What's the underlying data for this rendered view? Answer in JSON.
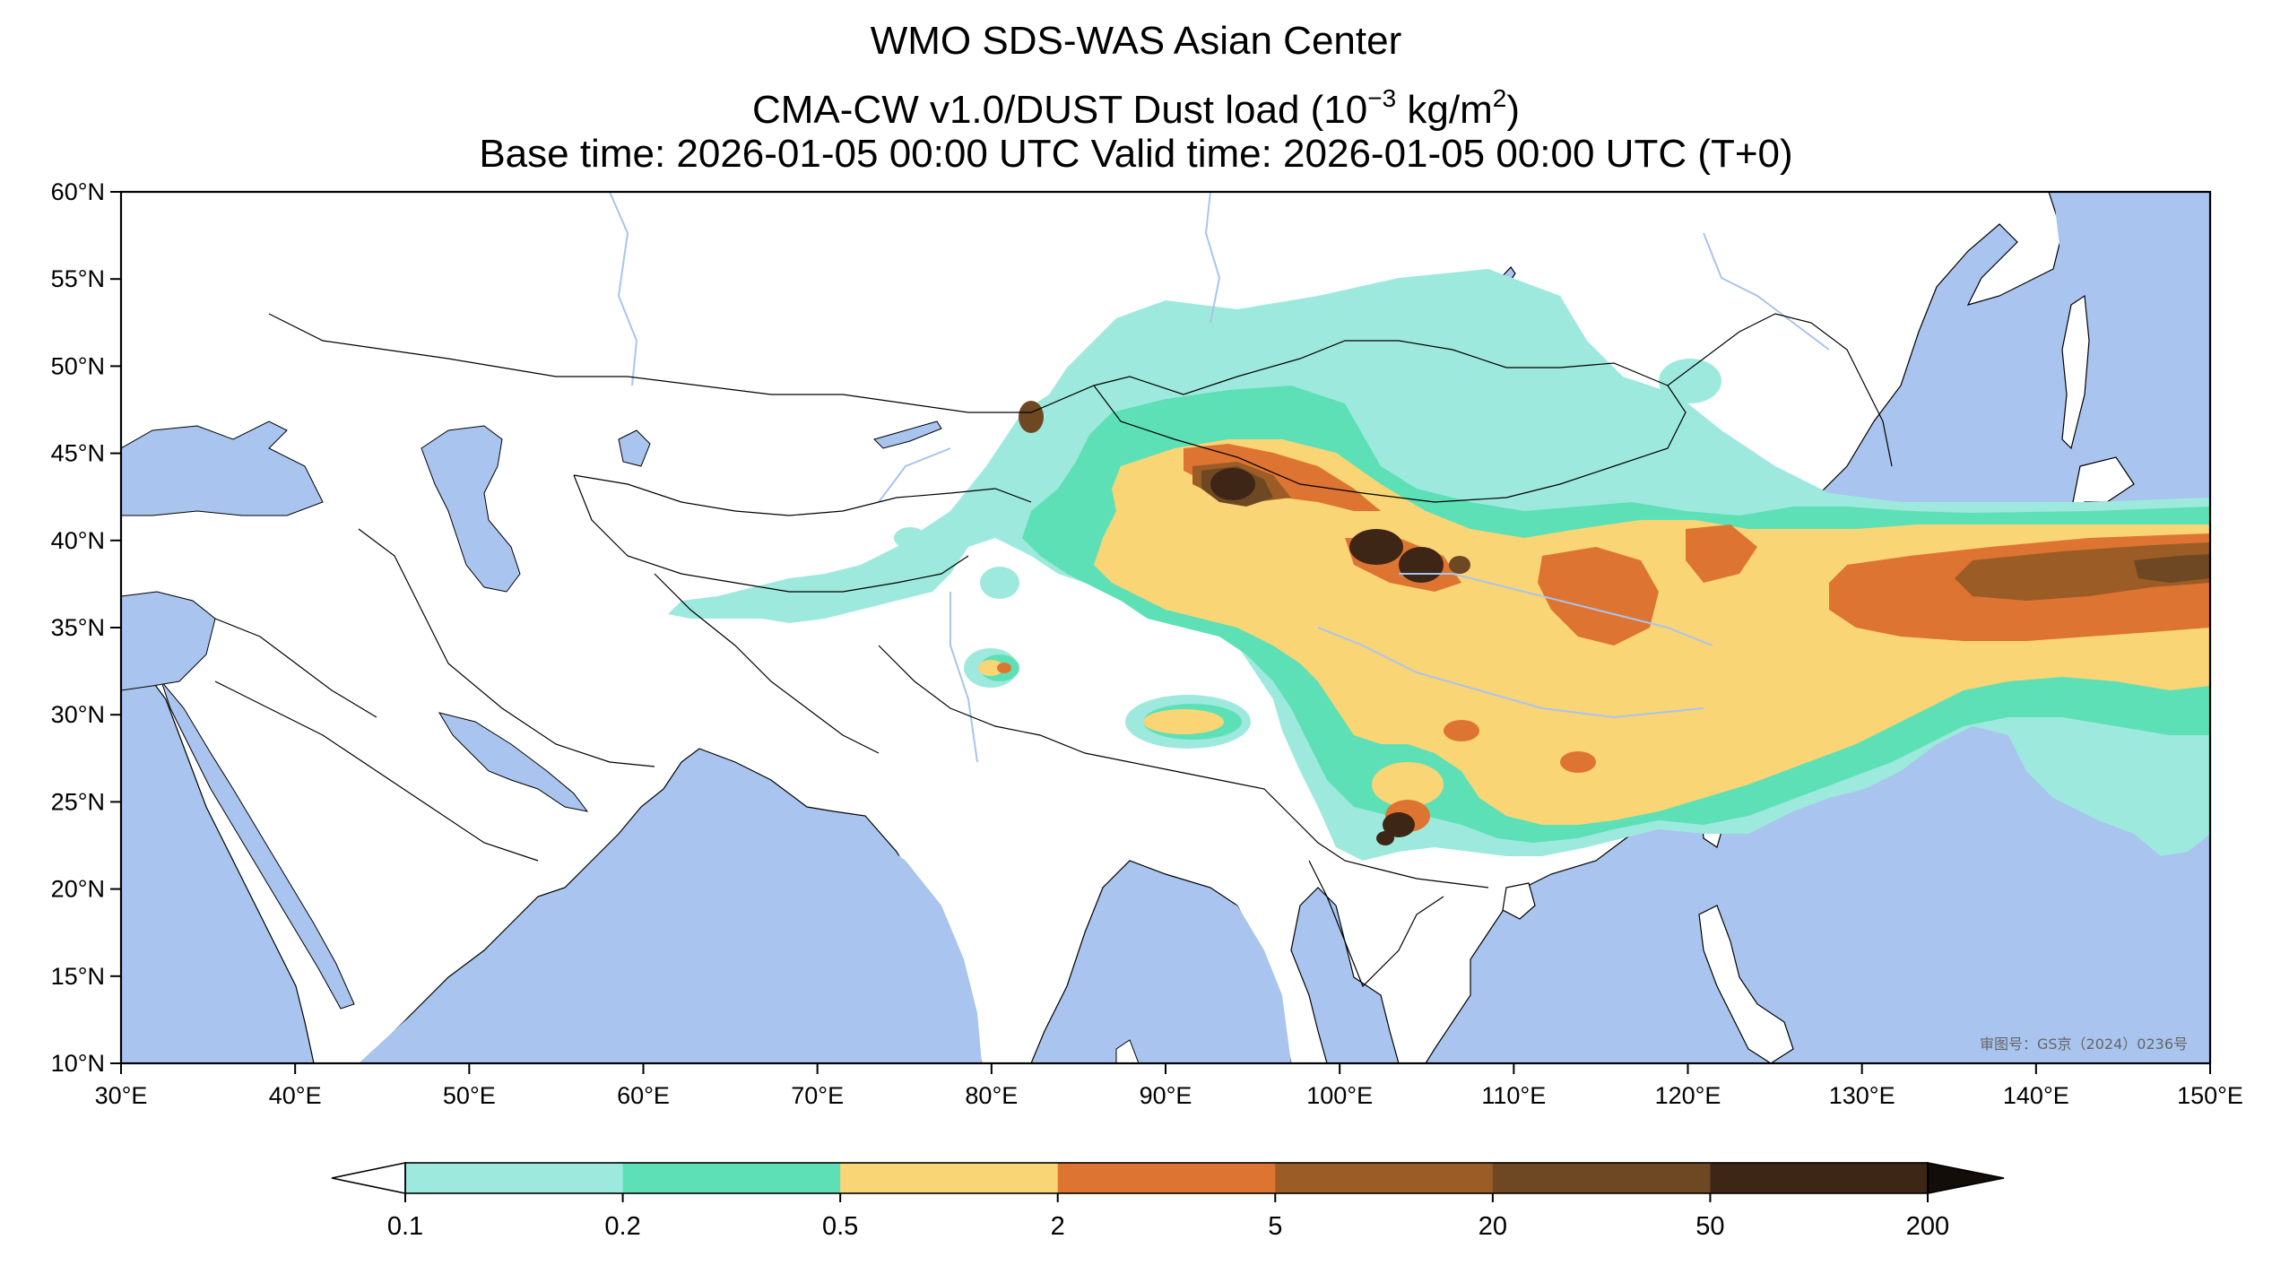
{
  "title": {
    "line1": "WMO SDS-WAS Asian Center",
    "line2_prefix": "CMA-CW v1.0/DUST Dust load (10",
    "line2_exp": "−3",
    "line2_mid": " kg/m",
    "line2_exp2": "2",
    "line2_suffix": ")",
    "line3": "Base time: 2026-01-05 00:00 UTC Valid time: 2026-01-05 00:00 UTC (T+0)"
  },
  "map": {
    "lon_range": [
      30,
      150
    ],
    "lat_range": [
      10,
      60
    ],
    "lon_ticks": [
      "30°E",
      "40°E",
      "50°E",
      "60°E",
      "70°E",
      "80°E",
      "90°E",
      "100°E",
      "110°E",
      "120°E",
      "130°E",
      "140°E",
      "150°E"
    ],
    "lat_ticks": [
      "60°N",
      "55°N",
      "50°N",
      "45°N",
      "40°N",
      "35°N",
      "30°N",
      "25°N",
      "20°N",
      "15°N",
      "10°N"
    ],
    "watermark": "审图号：GS京（2024）0236号",
    "colors": {
      "ocean": "#a9c4ee",
      "land": "#ffffff",
      "border": "#000000",
      "river": "#a9c4ee"
    }
  },
  "colorbar": {
    "labels": [
      "0.1",
      "0.2",
      "0.5",
      "2",
      "5",
      "20",
      "50",
      "200"
    ],
    "colors": [
      "#9ee9dd",
      "#5ee0b6",
      "#fad576",
      "#de7432",
      "#9b5c25",
      "#6e4723",
      "#3e2616"
    ],
    "extend": "both"
  }
}
